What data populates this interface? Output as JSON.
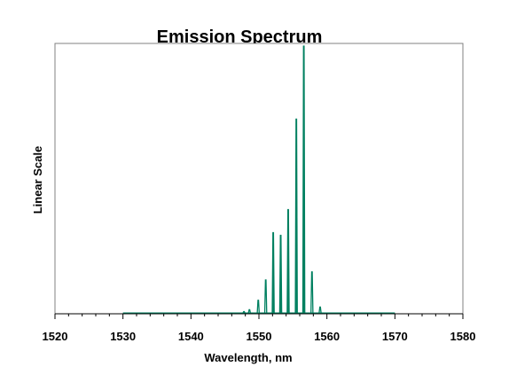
{
  "chart_data": {
    "type": "line",
    "title": "Emission Spectrum",
    "xlabel": "Wavelength, nm",
    "ylabel": "Linear Scale",
    "xlim": [
      1520,
      1580
    ],
    "ylim": [
      0,
      100
    ],
    "x_ticks": [
      1520,
      1530,
      1540,
      1550,
      1560,
      1570,
      1580
    ],
    "y_ticks_shown": false,
    "grid": false,
    "legend": "none",
    "baseline_range": [
      1530,
      1570
    ],
    "series": [
      {
        "color": "#008060",
        "peaks": [
          {
            "x": 1547.8,
            "y": 0.8
          },
          {
            "x": 1548.6,
            "y": 1.5
          },
          {
            "x": 1549.9,
            "y": 5.0
          },
          {
            "x": 1551.0,
            "y": 12.5
          },
          {
            "x": 1552.1,
            "y": 30.0
          },
          {
            "x": 1553.2,
            "y": 29.0
          },
          {
            "x": 1554.3,
            "y": 38.5
          },
          {
            "x": 1555.5,
            "y": 72.0
          },
          {
            "x": 1556.6,
            "y": 99.0
          },
          {
            "x": 1557.8,
            "y": 15.5
          },
          {
            "x": 1559.0,
            "y": 2.5
          }
        ]
      }
    ]
  }
}
